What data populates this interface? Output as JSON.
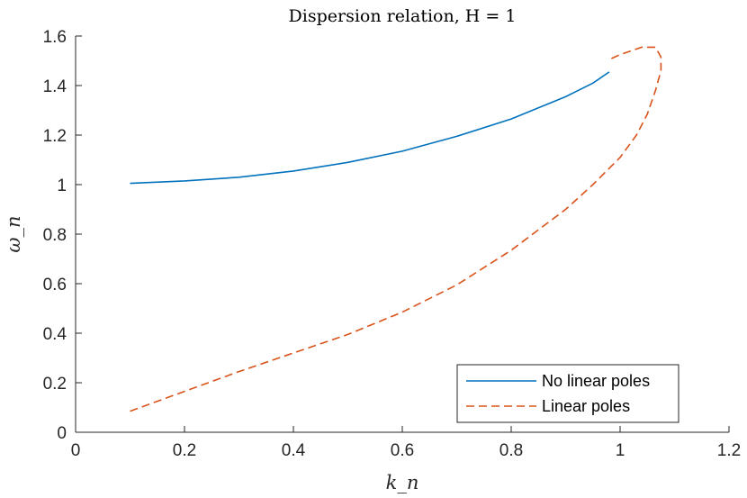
{
  "chart_data": {
    "type": "line",
    "title": "Dispersion relation, H = 1",
    "xlabel": "k_n",
    "ylabel": "ω_n",
    "xlim": [
      0,
      1.2
    ],
    "ylim": [
      0,
      1.6
    ],
    "xticks": [
      "0",
      "0.2",
      "0.4",
      "0.6",
      "0.8",
      "1",
      "1.2"
    ],
    "yticks": [
      "0",
      "0.2",
      "0.4",
      "0.6",
      "0.8",
      "1",
      "1.2",
      "1.4",
      "1.6"
    ],
    "grid": false,
    "legend_position": "bottom-right",
    "series": [
      {
        "name": "No linear poles",
        "color": "#0072BD",
        "style": "solid",
        "x": [
          0.1,
          0.2,
          0.3,
          0.4,
          0.5,
          0.6,
          0.7,
          0.8,
          0.9,
          0.95,
          0.98
        ],
        "y": [
          1.005,
          1.015,
          1.03,
          1.055,
          1.09,
          1.135,
          1.195,
          1.265,
          1.355,
          1.41,
          1.455
        ]
      },
      {
        "name": "Linear poles",
        "color": "#D95319",
        "style": "dashed",
        "x": [
          0.1,
          0.2,
          0.3,
          0.4,
          0.5,
          0.6,
          0.7,
          0.8,
          0.9,
          0.95,
          1.0,
          1.03,
          1.05,
          1.065,
          1.075,
          1.075,
          1.065,
          1.04,
          1.0,
          0.98
        ],
        "y": [
          0.085,
          0.165,
          0.245,
          0.32,
          0.395,
          0.485,
          0.595,
          0.735,
          0.9,
          1.0,
          1.11,
          1.2,
          1.285,
          1.38,
          1.46,
          1.515,
          1.555,
          1.555,
          1.525,
          1.505
        ]
      }
    ]
  }
}
